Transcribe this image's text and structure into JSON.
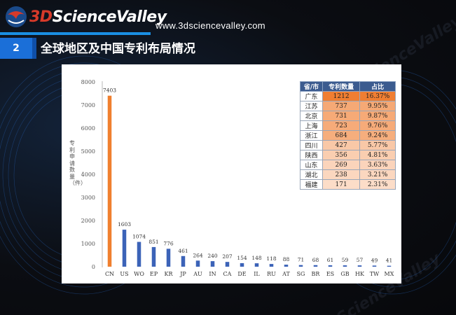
{
  "header": {
    "logo_prefix": "3D",
    "logo_text": "ScienceValley",
    "url": "www.3dsciencevalley.com",
    "section_number": "2",
    "section_title": "全球地区及中国专利布局情况"
  },
  "colors": {
    "highlight_bar": "#f07f2e",
    "bar": "#3c63b8",
    "accent_blue": "#1b6fd8"
  },
  "chart_data": {
    "type": "bar",
    "title": "",
    "xlabel": "",
    "ylabel": "专利申请数量（件）",
    "ylim": [
      0,
      8000
    ],
    "yticks": [
      0,
      1000,
      2000,
      3000,
      4000,
      5000,
      6000,
      7000,
      8000
    ],
    "grid": false,
    "categories": [
      "CN",
      "US",
      "WO",
      "EP",
      "KR",
      "JP",
      "AU",
      "IN",
      "CA",
      "DE",
      "IL",
      "RU",
      "AT",
      "SG",
      "BR",
      "ES",
      "GB",
      "HK",
      "TW",
      "MX"
    ],
    "values": [
      7403,
      1603,
      1074,
      851,
      776,
      461,
      264,
      240,
      207,
      154,
      148,
      118,
      88,
      71,
      68,
      61,
      59,
      57,
      49,
      41
    ],
    "highlight_index": 0
  },
  "province_table": {
    "headers": [
      "省/市",
      "专利数量",
      "占比"
    ],
    "rows": [
      {
        "province": "广东",
        "count": "1212",
        "share": "16.37%",
        "level": 1.0
      },
      {
        "province": "江苏",
        "count": "737",
        "share": "9.95%",
        "level": 0.55
      },
      {
        "province": "北京",
        "count": "731",
        "share": "9.87%",
        "level": 0.54
      },
      {
        "province": "上海",
        "count": "723",
        "share": "9.76%",
        "level": 0.53
      },
      {
        "province": "浙江",
        "count": "684",
        "share": "9.24%",
        "level": 0.5
      },
      {
        "province": "四川",
        "count": "427",
        "share": "5.77%",
        "level": 0.22
      },
      {
        "province": "陕西",
        "count": "356",
        "share": "4.81%",
        "level": 0.16
      },
      {
        "province": "山东",
        "count": "269",
        "share": "3.63%",
        "level": 0.09
      },
      {
        "province": "湖北",
        "count": "238",
        "share": "3.21%",
        "level": 0.06
      },
      {
        "province": "福建",
        "count": "171",
        "share": "2.31%",
        "level": 0.0
      }
    ]
  }
}
